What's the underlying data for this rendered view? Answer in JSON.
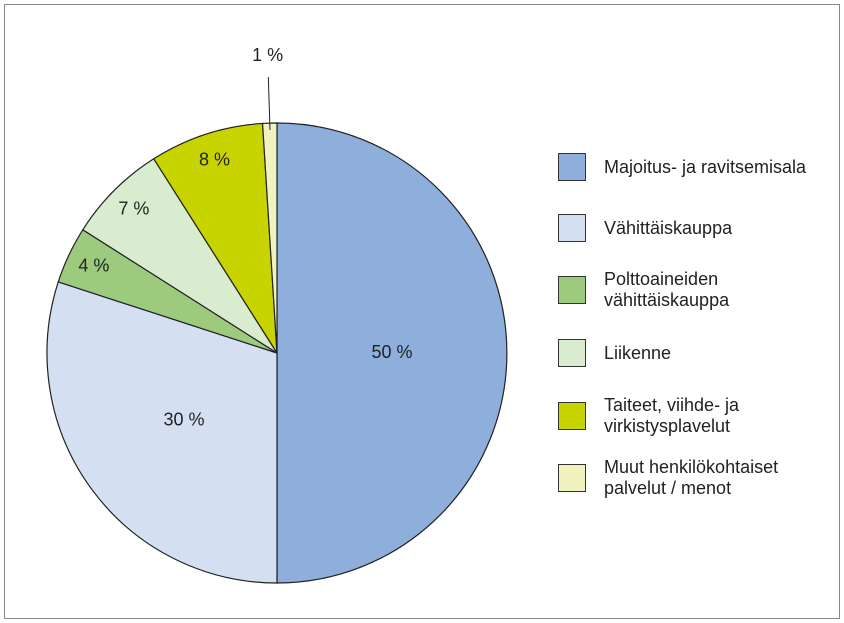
{
  "chart_data": {
    "type": "pie",
    "categories": [
      "Majoitus- ja ravitsemisala",
      "Vähittäiskauppa",
      "Polttoaineiden vähittäiskauppa",
      "Liikenne",
      "Taiteet, viihde- ja virkistysplavelut",
      "Muut henkilökohtaiset palvelut / menot"
    ],
    "values": [
      50,
      30,
      4,
      7,
      8,
      1
    ],
    "value_labels": [
      "50 %",
      "30 %",
      "4 %",
      "7 %",
      "8 %",
      "1 %"
    ],
    "colors": [
      "#8eaedb",
      "#d4dff1",
      "#9ccb7e",
      "#d9ecd0",
      "#c8d400",
      "#f0f3c0"
    ]
  }
}
